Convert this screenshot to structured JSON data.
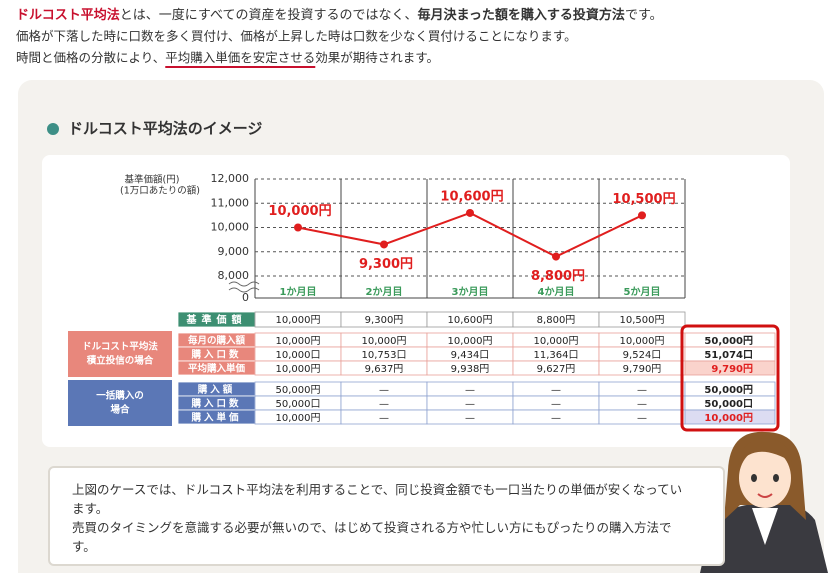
{
  "intro": {
    "line1": {
      "term": "ドルコスト平均法",
      "text1": "とは、一度にすべての資産を投資するのではなく、",
      "emphasis": "毎月決まった額を購入する投資方法",
      "text2": "です。"
    },
    "line2": "価格が下落した時に口数を多く買付け、価格が上昇した時は口数を少なく買付けることになります。",
    "line3": {
      "text1": "時間と価格の分散により、",
      "underline": "平均購入単価を安定させる",
      "text2": "効果が期待されます。"
    }
  },
  "section_title": "ドルコスト平均法のイメージ",
  "chart_data": {
    "type": "line",
    "y_axis_label": [
      "基準価額(円)",
      "(1万口あたりの額)"
    ],
    "categories": [
      "1か月目",
      "2か月目",
      "3か月目",
      "4か月目",
      "5か月目"
    ],
    "values": [
      10000,
      9300,
      10600,
      8800,
      10500
    ],
    "value_labels": [
      "10,000円",
      "9,300円",
      "10,600円",
      "8,800円",
      "10,500円"
    ],
    "color": "#e01e1e",
    "ylim": [
      0,
      12000
    ],
    "axis_break": [
      0,
      8000
    ],
    "yticks": [
      0,
      {
        "value": 8000,
        "label": "8,000"
      },
      {
        "value": 9000,
        "label": "9,000"
      },
      {
        "value": 10000,
        "label": "10,000"
      },
      {
        "value": 11000,
        "label": "11,000"
      },
      {
        "value": 12000,
        "label": "12,000"
      }
    ],
    "grid": true
  },
  "table": {
    "header_row": {
      "label": "基準価額",
      "cells": [
        "10,000円",
        "9,300円",
        "10,600円",
        "8,800円",
        "10,500円"
      ]
    },
    "groups": [
      {
        "label": [
          "ドルコスト平均法",
          "積立投信の場合"
        ],
        "rows": [
          {
            "label": "毎月の購入額",
            "cells": [
              "10,000円",
              "10,000円",
              "10,000円",
              "10,000円",
              "10,000円"
            ],
            "total": "50,000円"
          },
          {
            "label": "購入口数",
            "cells": [
              "10,000口",
              "10,753口",
              "9,434口",
              "11,364口",
              "9,524口"
            ],
            "total": "51,074口"
          },
          {
            "label": "平均購入単価",
            "cells": [
              "10,000円",
              "9,637円",
              "9,938円",
              "9,627円",
              "9,790円"
            ],
            "total": "9,790円"
          }
        ]
      },
      {
        "label": [
          "一括購入の",
          "場合"
        ],
        "rows": [
          {
            "label": "購入額",
            "cells": [
              "50,000円",
              "—",
              "—",
              "—",
              "—"
            ],
            "total": "50,000円"
          },
          {
            "label": "購入口数",
            "cells": [
              "50,000口",
              "—",
              "—",
              "—",
              "—"
            ],
            "total": "50,000口"
          },
          {
            "label": "購入単価",
            "cells": [
              "10,000円",
              "—",
              "—",
              "—",
              "—"
            ],
            "total": "10,000円"
          }
        ]
      }
    ]
  },
  "note": [
    "上図のケースでは、ドルコスト平均法を利用することで、同じ投資金額でも一口当たりの単価が安くなっています。",
    "売買のタイミングを意識する必要が無いので、はじめて投資される方や忙しい方にもぴったりの購入方法です。"
  ]
}
